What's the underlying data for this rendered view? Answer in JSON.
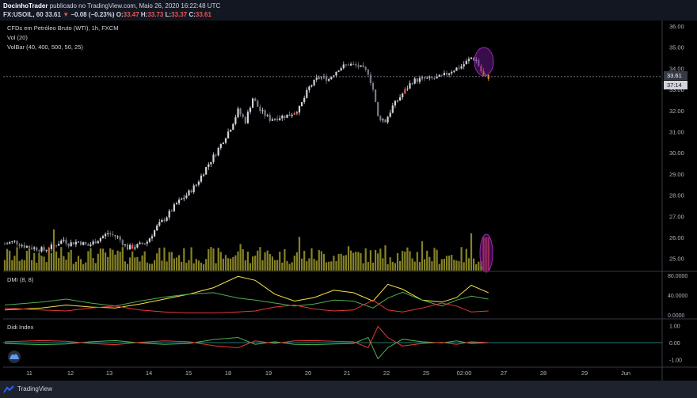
{
  "header": {
    "author": "DocinhoTrader",
    "published_text": "publicado no TradingView.com, Maio 26, 2020 16:22:48 UTC",
    "symbol": "FX:USOIL, 60",
    "last": "33.61",
    "arrow": "▼",
    "change": "−0.08 (−0.23%)",
    "o_label": "O:",
    "o_value": "33.47",
    "h_label": "H:",
    "h_value": "33.73",
    "l_label": "L:",
    "l_value": "33.37",
    "c_label": "C:",
    "c_value": "33.61"
  },
  "legend": {
    "title": "CFDs em Petróleo Bruto (WTI), 1h, FXCM",
    "vol": "Vol (20)",
    "volbar": "VolBar (40, 400, 500, 50, 25)",
    "dmi": "DMI (8, 8)",
    "didi": "Didi Index"
  },
  "price_axis": {
    "ticks": [
      "36.00",
      "35.00",
      "34.00",
      "33.00",
      "32.00",
      "31.00",
      "30.00",
      "29.00",
      "28.00",
      "27.00",
      "26.00",
      "25.00"
    ],
    "last_price_label": "33.61",
    "countdown_label": "37:14"
  },
  "dmi_axis": {
    "ticks": [
      "80.0000",
      "40.0000",
      "0.0000"
    ]
  },
  "didi_axis": {
    "ticks": [
      "1.00",
      "0.00",
      "-1.00"
    ]
  },
  "time_axis": {
    "labels": [
      "11",
      "12",
      "13",
      "14",
      "15",
      "18",
      "19",
      "20",
      "21",
      "22",
      "25",
      "02:00",
      "27",
      "28",
      "29",
      "Jun"
    ]
  },
  "colors": {
    "background": "#000000",
    "header_bg": "#131722",
    "candle_up": "#d1d4dc",
    "candle_down": "#787b86",
    "candle_alert": "#ef5350",
    "candle_warn": "#ff9800",
    "volume": "#9e9a2c",
    "dmi_adx": "#f5e34a",
    "dmi_plus": "#4caf50",
    "dmi_minus": "#e53935",
    "didi_fast": "#e53935",
    "didi_slow": "#4caf50",
    "didi_zero": "#26a69a",
    "highlight": "#7b1fa2"
  },
  "footer": {
    "brand": "TradingView"
  },
  "chart_data": {
    "type": "candlestick",
    "title": "CFDs em Petróleo Bruto (WTI), 1h, FXCM",
    "ylim": [
      24.5,
      36.2
    ],
    "price_trend": [
      [
        0,
        25.7
      ],
      [
        4,
        25.8
      ],
      [
        8,
        25.6
      ],
      [
        12,
        25.5
      ],
      [
        16,
        25.4
      ],
      [
        20,
        25.6
      ],
      [
        24,
        25.9
      ],
      [
        26,
        25.7
      ],
      [
        30,
        25.8
      ],
      [
        34,
        25.6
      ],
      [
        38,
        25.9
      ],
      [
        42,
        26.2
      ],
      [
        46,
        26.0
      ],
      [
        50,
        25.5
      ],
      [
        54,
        25.6
      ],
      [
        58,
        25.8
      ],
      [
        62,
        26.5
      ],
      [
        66,
        27.0
      ],
      [
        70,
        27.6
      ],
      [
        74,
        28.0
      ],
      [
        78,
        28.5
      ],
      [
        82,
        29.3
      ],
      [
        86,
        30.0
      ],
      [
        90,
        30.8
      ],
      [
        92,
        31.2
      ],
      [
        95,
        32.0
      ],
      [
        98,
        31.5
      ],
      [
        101,
        32.6
      ],
      [
        104,
        32.0
      ],
      [
        108,
        31.6
      ],
      [
        112,
        31.7
      ],
      [
        116,
        31.8
      ],
      [
        120,
        32.1
      ],
      [
        124,
        33.1
      ],
      [
        128,
        33.6
      ],
      [
        132,
        33.5
      ],
      [
        136,
        34.0
      ],
      [
        140,
        34.2
      ],
      [
        144,
        34.1
      ],
      [
        148,
        33.8
      ],
      [
        150,
        33.0
      ],
      [
        152,
        31.7
      ],
      [
        155,
        31.5
      ],
      [
        158,
        32.2
      ],
      [
        162,
        32.8
      ],
      [
        166,
        33.4
      ],
      [
        170,
        33.5
      ],
      [
        174,
        33.5
      ],
      [
        178,
        33.6
      ],
      [
        182,
        33.9
      ],
      [
        186,
        34.1
      ],
      [
        190,
        34.5
      ],
      [
        192,
        34.4
      ],
      [
        195,
        33.6
      ],
      [
        197,
        33.6
      ]
    ],
    "last_price": 33.61,
    "dmi_range": [
      0,
      80
    ],
    "dmi_adx": [
      [
        0,
        10
      ],
      [
        15,
        14
      ],
      [
        25,
        20
      ],
      [
        35,
        16
      ],
      [
        45,
        14
      ],
      [
        55,
        22
      ],
      [
        65,
        32
      ],
      [
        75,
        42
      ],
      [
        85,
        55
      ],
      [
        95,
        78
      ],
      [
        102,
        70
      ],
      [
        110,
        42
      ],
      [
        118,
        28
      ],
      [
        126,
        35
      ],
      [
        134,
        50
      ],
      [
        142,
        45
      ],
      [
        150,
        28
      ],
      [
        156,
        62
      ],
      [
        162,
        52
      ],
      [
        170,
        30
      ],
      [
        178,
        26
      ],
      [
        184,
        35
      ],
      [
        190,
        60
      ],
      [
        197,
        45
      ]
    ],
    "dmi_plus": [
      [
        0,
        20
      ],
      [
        15,
        26
      ],
      [
        25,
        32
      ],
      [
        35,
        24
      ],
      [
        45,
        18
      ],
      [
        55,
        28
      ],
      [
        65,
        36
      ],
      [
        75,
        42
      ],
      [
        85,
        45
      ],
      [
        95,
        34
      ],
      [
        102,
        30
      ],
      [
        110,
        24
      ],
      [
        118,
        18
      ],
      [
        126,
        22
      ],
      [
        134,
        30
      ],
      [
        142,
        28
      ],
      [
        150,
        14
      ],
      [
        156,
        34
      ],
      [
        162,
        46
      ],
      [
        170,
        30
      ],
      [
        178,
        18
      ],
      [
        184,
        30
      ],
      [
        190,
        38
      ],
      [
        197,
        32
      ]
    ],
    "dmi_minus": [
      [
        0,
        14
      ],
      [
        15,
        10
      ],
      [
        25,
        8
      ],
      [
        35,
        14
      ],
      [
        45,
        18
      ],
      [
        55,
        10
      ],
      [
        65,
        6
      ],
      [
        75,
        4
      ],
      [
        85,
        4
      ],
      [
        95,
        6
      ],
      [
        102,
        8
      ],
      [
        110,
        16
      ],
      [
        118,
        20
      ],
      [
        126,
        12
      ],
      [
        134,
        8
      ],
      [
        142,
        10
      ],
      [
        150,
        30
      ],
      [
        156,
        10
      ],
      [
        162,
        6
      ],
      [
        170,
        14
      ],
      [
        178,
        24
      ],
      [
        184,
        18
      ],
      [
        190,
        6
      ],
      [
        197,
        8
      ]
    ],
    "didi_range": [
      -1.25,
      1.25
    ],
    "didi_fast": [
      [
        0,
        0.05
      ],
      [
        15,
        0.12
      ],
      [
        25,
        0.08
      ],
      [
        35,
        -0.05
      ],
      [
        45,
        -0.12
      ],
      [
        55,
        0.02
      ],
      [
        65,
        0.1
      ],
      [
        75,
        0.05
      ],
      [
        85,
        -0.18
      ],
      [
        95,
        -0.3
      ],
      [
        102,
        0.1
      ],
      [
        110,
        -0.05
      ],
      [
        118,
        0.1
      ],
      [
        126,
        0.12
      ],
      [
        134,
        0.08
      ],
      [
        142,
        0.05
      ],
      [
        148,
        -0.3
      ],
      [
        152,
        0.95
      ],
      [
        156,
        0.3
      ],
      [
        162,
        -0.2
      ],
      [
        170,
        -0.05
      ],
      [
        178,
        0.02
      ],
      [
        184,
        -0.1
      ],
      [
        190,
        0.05
      ],
      [
        197,
        0.0
      ]
    ],
    "didi_slow": [
      [
        0,
        -0.05
      ],
      [
        15,
        -0.12
      ],
      [
        25,
        -0.08
      ],
      [
        35,
        0.05
      ],
      [
        45,
        0.12
      ],
      [
        55,
        -0.02
      ],
      [
        65,
        -0.1
      ],
      [
        75,
        -0.05
      ],
      [
        85,
        0.18
      ],
      [
        95,
        0.3
      ],
      [
        102,
        -0.1
      ],
      [
        110,
        0.05
      ],
      [
        118,
        -0.1
      ],
      [
        126,
        -0.12
      ],
      [
        134,
        -0.08
      ],
      [
        142,
        -0.05
      ],
      [
        148,
        0.3
      ],
      [
        152,
        -0.95
      ],
      [
        156,
        -0.3
      ],
      [
        162,
        0.2
      ],
      [
        170,
        0.05
      ],
      [
        178,
        -0.02
      ],
      [
        184,
        0.1
      ],
      [
        190,
        -0.05
      ],
      [
        197,
        0.0
      ]
    ]
  }
}
